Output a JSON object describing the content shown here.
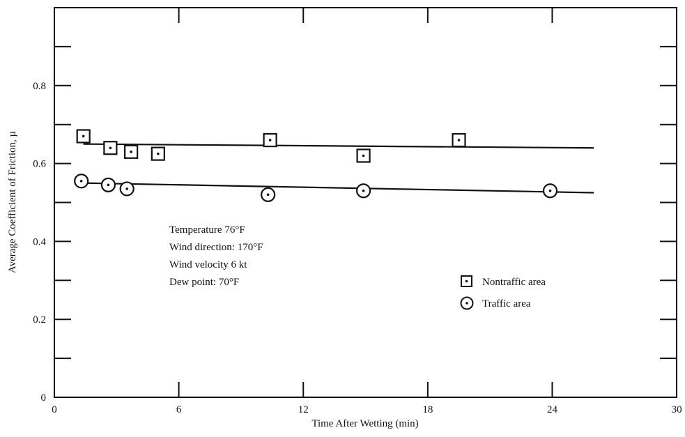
{
  "chart_data": {
    "type": "scatter",
    "xlabel": "Time After Wetting (min)",
    "ylabel": "Average Coefficient of Friction, µ",
    "xlim": [
      0,
      30
    ],
    "ylim": [
      0,
      1.0
    ],
    "x_ticks": [
      0,
      6,
      12,
      18,
      24,
      30
    ],
    "x_tick_labels": [
      "0",
      "6",
      "12",
      "18",
      "24",
      "30"
    ],
    "y_ticks": [
      0,
      0.2,
      0.4,
      0.6,
      0.8
    ],
    "y_tick_labels": [
      "0",
      "0.2",
      "0.4",
      "0.6",
      "0.8"
    ],
    "grid": false,
    "legend_position": "right",
    "annotations": [
      "Temperature  76°F",
      "Wind direction:  170°F",
      "Wind velocity   6 kt",
      "Dew point:  70°F"
    ],
    "series": [
      {
        "name": "Nontraffic area",
        "marker": "square-dot",
        "x": [
          1.4,
          2.7,
          3.7,
          5.0,
          10.4,
          14.9,
          19.5
        ],
        "y": [
          0.67,
          0.64,
          0.63,
          0.625,
          0.66,
          0.62,
          0.66
        ],
        "fit_line": {
          "x": [
            1.4,
            26
          ],
          "y": [
            0.65,
            0.64
          ]
        }
      },
      {
        "name": "Traffic area",
        "marker": "circle-dot",
        "x": [
          1.3,
          2.6,
          3.5,
          10.3,
          14.9,
          23.9
        ],
        "y": [
          0.555,
          0.545,
          0.535,
          0.52,
          0.53,
          0.53
        ],
        "fit_line": {
          "x": [
            1.3,
            26
          ],
          "y": [
            0.55,
            0.525
          ]
        }
      }
    ]
  }
}
